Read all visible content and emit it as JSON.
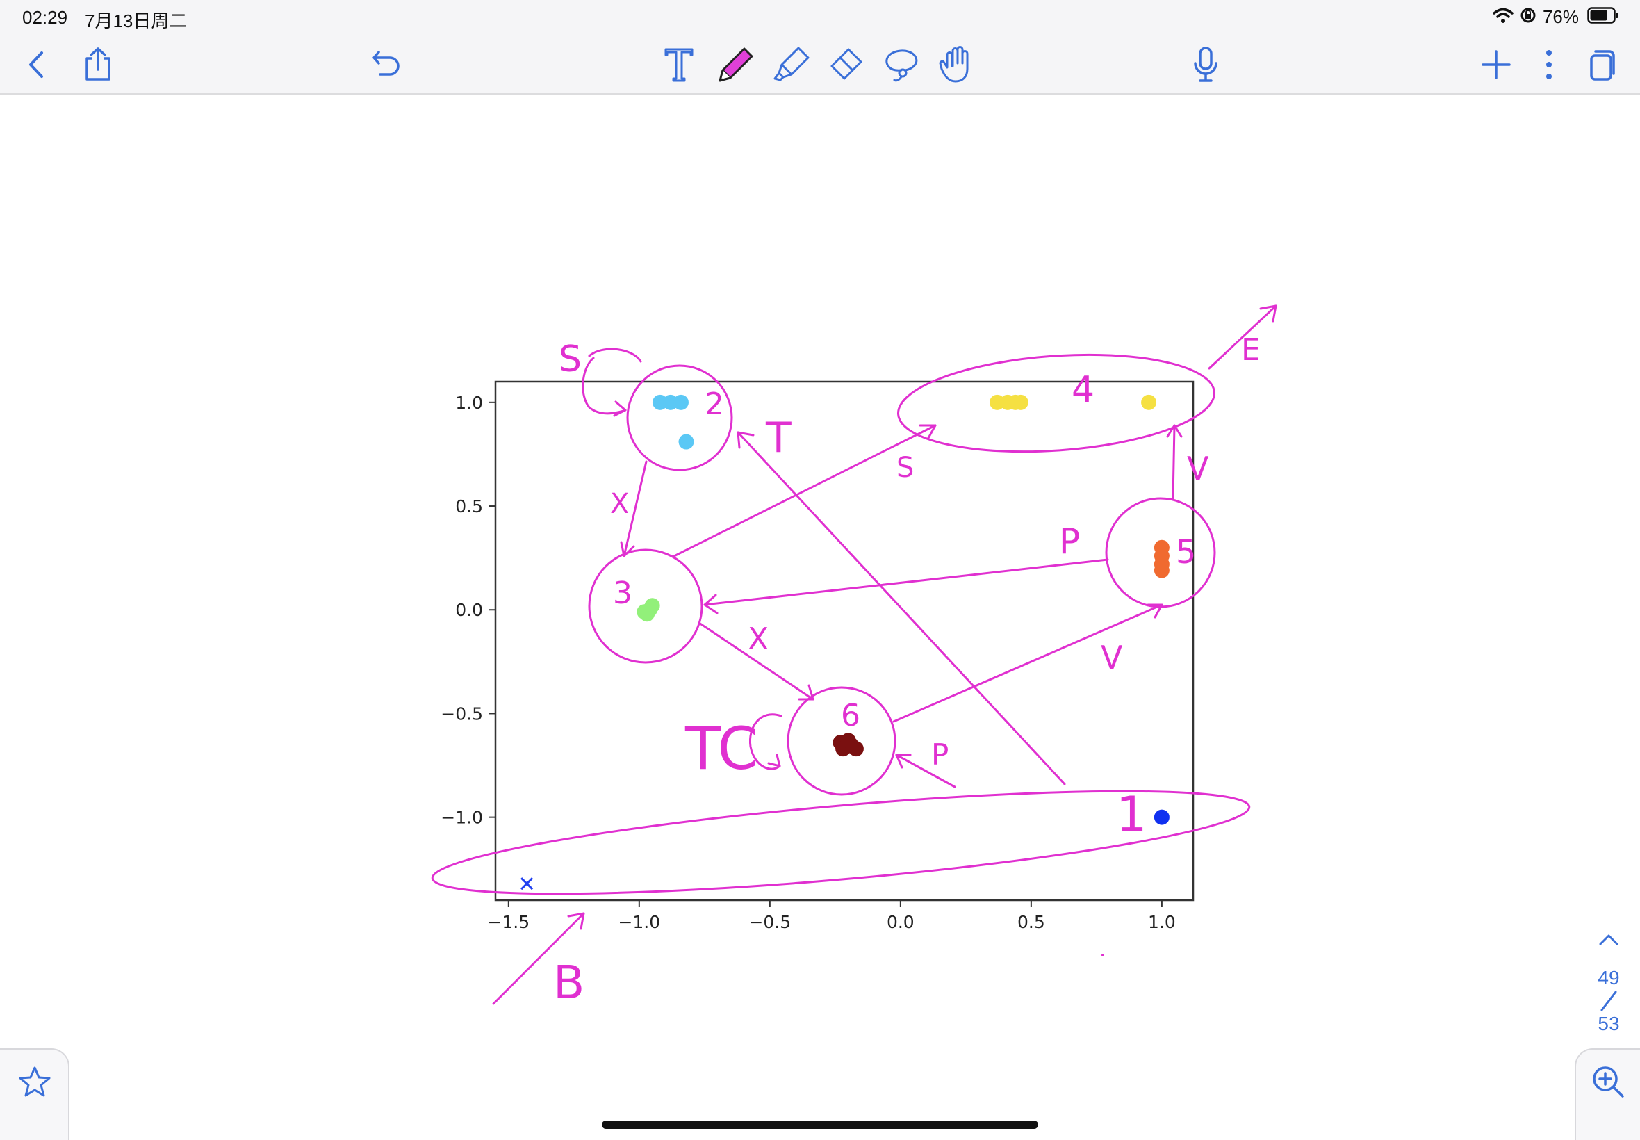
{
  "status_bar": {
    "time": "02:29",
    "date": "7月13日周二",
    "battery_text": "76%",
    "battery_level": 0.76
  },
  "toolbar": {
    "left": [
      "back-icon",
      "share-icon",
      "undo-icon"
    ],
    "tools": [
      "text-tool-icon",
      "pen-tool-icon",
      "highlighter-tool-icon",
      "eraser-tool-icon",
      "lasso-tool-icon",
      "hand-tool-icon"
    ],
    "right": [
      "microphone-icon",
      "add-icon",
      "more-icon",
      "pages-icon"
    ],
    "active_tool": "pen-tool-icon",
    "pen_color": "#e040d8",
    "accent_color": "#3a6fd8"
  },
  "page_nav": {
    "current": "49",
    "total": "53"
  },
  "ink_color": "#e030d0",
  "annotations": {
    "cluster_labels": [
      "1",
      "2",
      "3",
      "4",
      "5",
      "6"
    ],
    "edge_labels": [
      "S",
      "T",
      "X",
      "S",
      "P",
      "V",
      "X",
      "V",
      "TC",
      "P",
      "E",
      "B"
    ]
  },
  "chart_data": {
    "type": "scatter",
    "xlim": [
      -1.55,
      1.12
    ],
    "ylim": [
      -1.4,
      1.1
    ],
    "xticks": [
      "−1.5",
      "−1.0",
      "−0.5",
      "0.0",
      "0.5",
      "1.0"
    ],
    "xtick_values": [
      -1.5,
      -1.0,
      -0.5,
      0.0,
      0.5,
      1.0
    ],
    "yticks": [
      "1.0",
      "0.5",
      "0.0",
      "−0.5",
      "−1.0"
    ],
    "ytick_values": [
      1.0,
      0.5,
      0.0,
      -0.5,
      -1.0
    ],
    "grid": false,
    "series": [
      {
        "color": "#5bc8f5",
        "marker": "o",
        "points": [
          [
            -0.92,
            1.0
          ],
          [
            -0.88,
            1.0
          ],
          [
            -0.84,
            1.0
          ],
          [
            -0.82,
            0.81
          ]
        ]
      },
      {
        "color": "#f5e042",
        "marker": "o",
        "points": [
          [
            0.37,
            1.0
          ],
          [
            0.41,
            1.0
          ],
          [
            0.44,
            1.0
          ],
          [
            0.46,
            1.0
          ],
          [
            0.95,
            1.0
          ]
        ]
      },
      {
        "color": "#f06a30",
        "marker": "o",
        "points": [
          [
            1.0,
            0.3
          ],
          [
            1.0,
            0.26
          ],
          [
            1.0,
            0.22
          ],
          [
            1.0,
            0.19
          ]
        ]
      },
      {
        "color": "#92f07a",
        "marker": "o",
        "points": [
          [
            -0.98,
            -0.01
          ],
          [
            -0.96,
            0.0
          ],
          [
            -0.95,
            0.02
          ],
          [
            -0.97,
            -0.02
          ]
        ]
      },
      {
        "color": "#7a1010",
        "marker": "o",
        "points": [
          [
            -0.23,
            -0.64
          ],
          [
            -0.21,
            -0.66
          ],
          [
            -0.19,
            -0.65
          ],
          [
            -0.17,
            -0.67
          ],
          [
            -0.22,
            -0.67
          ],
          [
            -0.2,
            -0.63
          ]
        ]
      },
      {
        "color": "#1030f0",
        "marker": "o",
        "points": [
          [
            1.0,
            -1.0
          ]
        ]
      },
      {
        "color": "#2040f0",
        "marker": "x",
        "points": [
          [
            -1.43,
            -1.32
          ]
        ]
      }
    ]
  }
}
